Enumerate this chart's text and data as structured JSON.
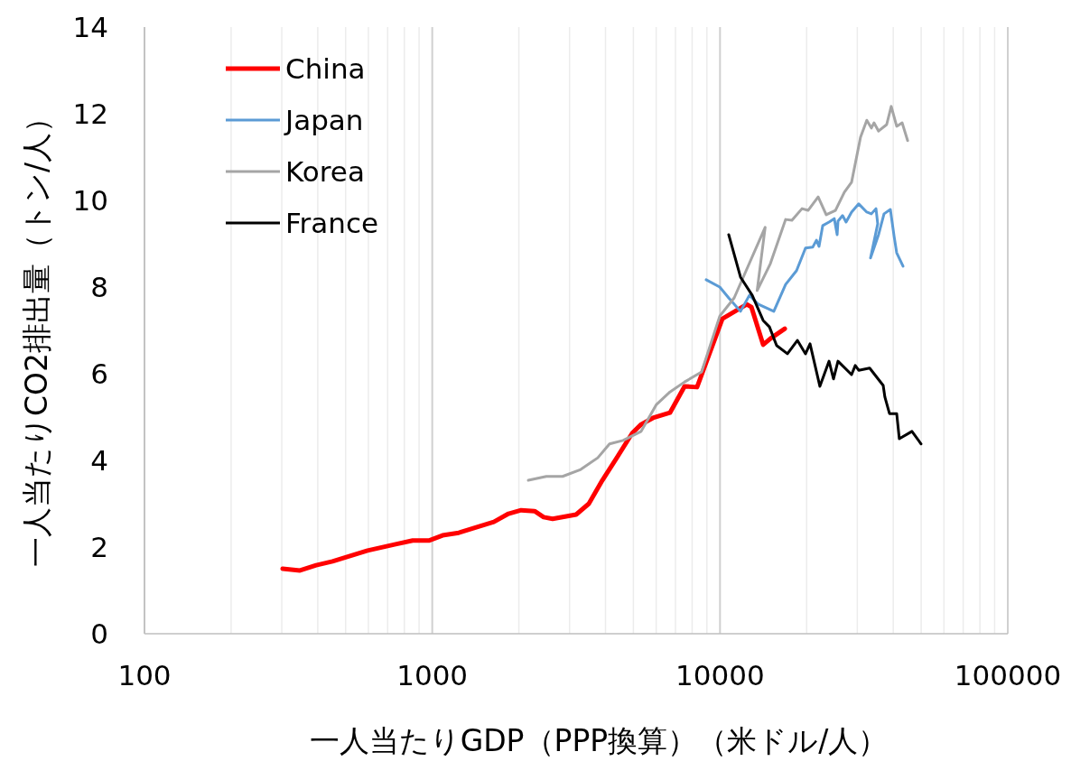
{
  "chart_data": {
    "type": "line",
    "xlabel": "一人当たりGDP（PPP換算）（米ドル/人）",
    "ylabel": "一人当たりCO2排出量（トン/人）",
    "log": "x",
    "grid": "x",
    "legend": "top left",
    "xlim": [
      100,
      100000
    ],
    "ylim": [
      0,
      14
    ],
    "yticks": [
      0,
      2,
      4,
      6,
      8,
      10,
      12,
      14
    ],
    "xticks": [
      100,
      {
        "value": 200,
        "label": null
      },
      {
        "value": 300,
        "label": null
      },
      {
        "value": 400,
        "label": null
      },
      {
        "value": 500,
        "label": null
      },
      {
        "value": 600,
        "label": null
      },
      {
        "value": 700,
        "label": null
      },
      {
        "value": 800,
        "label": null
      },
      {
        "value": 900,
        "label": null
      },
      1000,
      {
        "value": 2000,
        "label": null
      },
      {
        "value": 3000,
        "label": null
      },
      {
        "value": 4000,
        "label": null
      },
      {
        "value": 5000,
        "label": null
      },
      {
        "value": 6000,
        "label": null
      },
      {
        "value": 7000,
        "label": null
      },
      {
        "value": 8000,
        "label": null
      },
      {
        "value": 9000,
        "label": null
      },
      10000,
      {
        "value": 20000,
        "label": null
      },
      {
        "value": 30000,
        "label": null
      },
      {
        "value": 40000,
        "label": null
      },
      {
        "value": 50000,
        "label": null
      },
      {
        "value": 60000,
        "label": null
      },
      {
        "value": 70000,
        "label": null
      },
      {
        "value": 80000,
        "label": null
      },
      {
        "value": 90000,
        "label": null
      },
      100000
    ],
    "series": [
      {
        "name": "China",
        "color": "#ff0000",
        "x": [
          302,
          347,
          395,
          450,
          596,
          740,
          855,
          973,
          1086,
          1236,
          1637,
          1841,
          2036,
          2268,
          2438,
          2620,
          3162,
          3500,
          3900,
          4378,
          4955,
          5320,
          5848,
          6700,
          7530,
          8320,
          10190,
          12390,
          12850,
          14120,
          14960,
          16790
        ],
        "values": [
          1.5,
          1.46,
          1.58,
          1.67,
          1.92,
          2.06,
          2.15,
          2.15,
          2.27,
          2.33,
          2.58,
          2.77,
          2.85,
          2.83,
          2.69,
          2.65,
          2.75,
          3.0,
          3.54,
          4.06,
          4.63,
          4.83,
          4.98,
          5.1,
          5.71,
          5.69,
          7.27,
          7.6,
          7.54,
          6.67,
          6.81,
          7.04
        ]
      },
      {
        "name": "Japan",
        "color": "#5b9bd5",
        "x": [
          8950,
          9980,
          10720,
          11780,
          12650,
          13610,
          15380,
          16900,
          18450,
          19820,
          20990,
          21630,
          22080,
          22750,
          23930,
          24950,
          25530,
          25700,
          26660,
          27420,
          28650,
          30340,
          32360,
          33570,
          34830,
          35320,
          33340,
          35560,
          37150,
          39080,
          40270,
          41110,
          43250
        ],
        "values": [
          8.17,
          8.0,
          7.75,
          7.44,
          7.81,
          7.6,
          7.44,
          8.06,
          8.38,
          8.9,
          8.92,
          9.08,
          8.94,
          9.42,
          9.5,
          9.58,
          9.21,
          9.52,
          9.65,
          9.5,
          9.73,
          9.92,
          9.73,
          9.69,
          9.81,
          9.46,
          8.67,
          9.21,
          9.69,
          9.79,
          9.17,
          8.79,
          8.48
        ]
      },
      {
        "name": "Korea",
        "color": "#a5a5a5",
        "x": [
          2157,
          2490,
          2837,
          3281,
          3760,
          4130,
          4604,
          5320,
          6013,
          6700,
          7530,
          8630,
          9980,
          11200,
          14350,
          13460,
          14960,
          16900,
          17780,
          19270,
          20230,
          21930,
          23390,
          25180,
          27050,
          28650,
          30780,
          32360,
          33570,
          34280,
          35560,
          37940,
          39350,
          41110,
          42950,
          44870
        ],
        "values": [
          3.54,
          3.63,
          3.63,
          3.79,
          4.06,
          4.38,
          4.46,
          4.67,
          5.29,
          5.58,
          5.81,
          6.04,
          7.33,
          7.75,
          9.38,
          7.92,
          8.54,
          9.56,
          9.54,
          9.81,
          9.77,
          10.08,
          9.67,
          9.77,
          10.19,
          10.42,
          11.46,
          11.85,
          11.67,
          11.79,
          11.6,
          11.75,
          12.17,
          11.71,
          11.79,
          11.38
        ]
      },
      {
        "name": "France",
        "color": "#000000",
        "x": [
          10720,
          11780,
          12940,
          14120,
          14850,
          15730,
          17150,
          18570,
          19820,
          20550,
          22230,
          23930,
          24790,
          25700,
          28650,
          29510,
          30340,
          33110,
          36900,
          37410,
          38810,
          41110,
          41980,
          46450,
          49970
        ],
        "values": [
          9.21,
          8.23,
          7.81,
          7.23,
          7.08,
          6.65,
          6.46,
          6.77,
          6.46,
          6.69,
          5.71,
          6.29,
          5.88,
          6.29,
          5.98,
          6.19,
          6.08,
          6.13,
          5.73,
          5.46,
          5.08,
          5.08,
          4.5,
          4.67,
          4.38
        ]
      }
    ]
  }
}
